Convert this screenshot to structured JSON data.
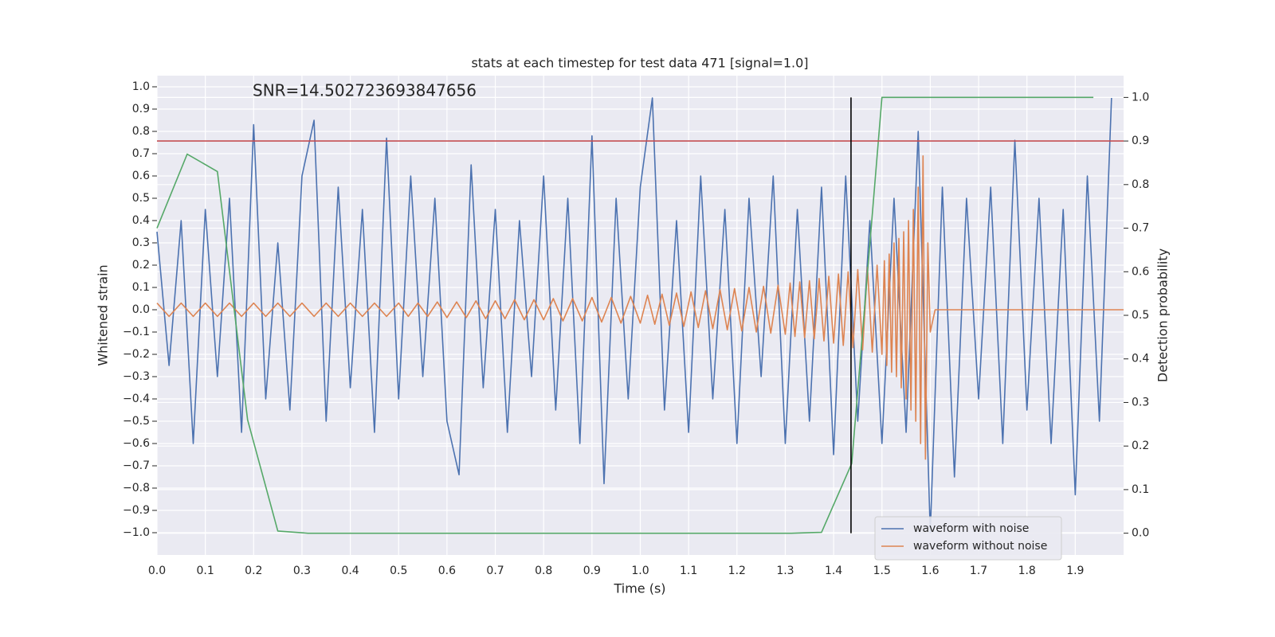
{
  "chart_data": {
    "type": "line",
    "title": "stats at each timestep for test data 471 [signal=1.0]",
    "annotation": "SNR=14.502723693847656",
    "x_label": "Time (s)",
    "y_label": "Whitened strain",
    "y2_label": "Detection probability",
    "xlim": [
      0,
      2.0
    ],
    "ylim": [
      -1.1,
      1.05
    ],
    "y2lim": [
      -0.05,
      1.05
    ],
    "xticks": [
      {
        "value": 0,
        "label": "0.0"
      },
      0.1,
      0.2,
      0.3,
      0.4,
      0.5,
      0.6,
      0.7,
      0.8,
      0.9,
      {
        "value": 1,
        "label": "1.0"
      },
      1.1,
      1.2,
      1.3,
      1.4,
      1.5,
      1.6,
      1.7,
      1.8,
      1.9
    ],
    "yticks": [
      {
        "value": -1,
        "label": "−1.0"
      },
      {
        "value": -0.9,
        "label": "−0.9"
      },
      {
        "value": -0.8,
        "label": "−0.8"
      },
      {
        "value": -0.7,
        "label": "−0.7"
      },
      {
        "value": -0.6,
        "label": "−0.6"
      },
      {
        "value": -0.5,
        "label": "−0.5"
      },
      {
        "value": -0.4,
        "label": "−0.4"
      },
      {
        "value": -0.3,
        "label": "−0.3"
      },
      {
        "value": -0.2,
        "label": "−0.2"
      },
      {
        "value": -0.1,
        "label": "−0.1"
      },
      {
        "value": 0,
        "label": "0.0"
      },
      0.1,
      0.2,
      0.3,
      0.4,
      0.5,
      0.6,
      0.7,
      0.8,
      0.9,
      {
        "value": 1,
        "label": "1.0"
      }
    ],
    "y2ticks": [
      {
        "value": 0,
        "label": "0.0"
      },
      0.1,
      0.2,
      0.3,
      0.4,
      0.5,
      0.6,
      0.7,
      0.8,
      0.9,
      {
        "value": 1,
        "label": "1.0"
      }
    ],
    "grid": true,
    "legend": "lower right",
    "series": [
      {
        "name": "waveform with noise",
        "color": "#4c72b0",
        "axis": "y",
        "x": [
          0,
          0.025,
          0.05,
          0.075,
          0.1,
          0.125,
          0.15,
          0.175,
          0.2,
          0.225,
          0.25,
          0.275,
          0.3,
          0.325,
          0.35,
          0.375,
          0.4,
          0.425,
          0.45,
          0.475,
          0.5,
          0.525,
          0.55,
          0.575,
          0.6,
          0.625,
          0.65,
          0.675,
          0.7,
          0.725,
          0.75,
          0.775,
          0.8,
          0.825,
          0.85,
          0.875,
          0.9,
          0.925,
          0.95,
          0.975,
          1.0,
          1.025,
          1.05,
          1.075,
          1.1,
          1.125,
          1.15,
          1.175,
          1.2,
          1.225,
          1.25,
          1.275,
          1.3,
          1.325,
          1.35,
          1.375,
          1.4,
          1.425,
          1.45,
          1.475,
          1.5,
          1.525,
          1.55,
          1.575,
          1.6,
          1.625,
          1.65,
          1.675,
          1.7,
          1.725,
          1.75,
          1.775,
          1.8,
          1.825,
          1.85,
          1.875,
          1.9,
          1.925,
          1.95,
          1.975
        ],
        "values": [
          0.35,
          -0.25,
          0.4,
          -0.6,
          0.45,
          -0.3,
          0.5,
          -0.55,
          0.83,
          -0.4,
          0.3,
          -0.45,
          0.6,
          0.85,
          -0.5,
          0.55,
          -0.35,
          0.45,
          -0.55,
          0.77,
          -0.4,
          0.6,
          -0.3,
          0.5,
          -0.5,
          -0.74,
          0.65,
          -0.35,
          0.45,
          -0.55,
          0.4,
          -0.3,
          0.6,
          -0.45,
          0.5,
          -0.6,
          0.78,
          -0.78,
          0.5,
          -0.4,
          0.55,
          0.95,
          -0.45,
          0.4,
          -0.55,
          0.6,
          -0.4,
          0.45,
          -0.6,
          0.5,
          -0.3,
          0.6,
          -0.6,
          0.45,
          -0.5,
          0.55,
          -0.65,
          0.6,
          -0.5,
          0.4,
          -0.6,
          0.5,
          -0.55,
          0.8,
          -1.0,
          0.55,
          -0.75,
          0.5,
          -0.4,
          0.55,
          -0.6,
          0.76,
          -0.45,
          0.5,
          -0.6,
          0.45,
          -0.83,
          0.6,
          -0.5,
          0.95
        ]
      },
      {
        "name": "waveform without noise",
        "color": "#dd8452",
        "axis": "y",
        "x": [
          0,
          0.025,
          0.05,
          0.075,
          0.1,
          0.125,
          0.15,
          0.175,
          0.2,
          0.225,
          0.25,
          0.275,
          0.3,
          0.325,
          0.35,
          0.375,
          0.4,
          0.425,
          0.45,
          0.475,
          0.5,
          0.52,
          0.54,
          0.56,
          0.58,
          0.6,
          0.62,
          0.64,
          0.66,
          0.68,
          0.7,
          0.72,
          0.74,
          0.76,
          0.78,
          0.8,
          0.82,
          0.84,
          0.86,
          0.88,
          0.9,
          0.92,
          0.94,
          0.96,
          0.98,
          1.0,
          1.015,
          1.03,
          1.045,
          1.06,
          1.075,
          1.09,
          1.105,
          1.12,
          1.135,
          1.15,
          1.165,
          1.18,
          1.195,
          1.21,
          1.225,
          1.24,
          1.255,
          1.27,
          1.285,
          1.3,
          1.31,
          1.32,
          1.33,
          1.34,
          1.35,
          1.36,
          1.37,
          1.38,
          1.39,
          1.4,
          1.41,
          1.42,
          1.43,
          1.44,
          1.45,
          1.46,
          1.47,
          1.48,
          1.49,
          1.5,
          1.505,
          1.51,
          1.515,
          1.52,
          1.525,
          1.53,
          1.535,
          1.54,
          1.545,
          1.55,
          1.555,
          1.56,
          1.565,
          1.57,
          1.575,
          1.58,
          1.585,
          1.59,
          1.595,
          1.6,
          1.61,
          2.0
        ],
        "values": [
          0.03,
          -0.03,
          0.03,
          -0.03,
          0.03,
          -0.03,
          0.03,
          -0.03,
          0.03,
          -0.03,
          0.03,
          -0.03,
          0.03,
          -0.03,
          0.03,
          -0.03,
          0.03,
          -0.03,
          0.03,
          -0.03,
          0.03,
          -0.03,
          0.03,
          -0.03,
          0.035,
          -0.035,
          0.035,
          -0.035,
          0.04,
          -0.04,
          0.04,
          -0.04,
          0.045,
          -0.045,
          0.045,
          -0.045,
          0.05,
          -0.05,
          0.05,
          -0.05,
          0.055,
          -0.055,
          0.055,
          -0.06,
          0.06,
          -0.06,
          0.065,
          -0.065,
          0.07,
          -0.07,
          0.075,
          -0.075,
          0.08,
          -0.08,
          0.085,
          -0.085,
          0.09,
          -0.09,
          0.095,
          -0.095,
          0.1,
          -0.1,
          0.105,
          -0.105,
          0.11,
          -0.11,
          0.12,
          -0.12,
          0.125,
          -0.125,
          0.13,
          -0.13,
          0.14,
          -0.14,
          0.15,
          -0.15,
          0.16,
          -0.16,
          0.17,
          -0.17,
          0.18,
          -0.18,
          0.19,
          -0.19,
          0.2,
          -0.2,
          0.22,
          -0.25,
          0.25,
          -0.28,
          0.3,
          -0.3,
          0.32,
          -0.35,
          0.35,
          -0.4,
          0.4,
          -0.45,
          0.45,
          -0.5,
          0.55,
          -0.6,
          0.69,
          -0.67,
          0.3,
          -0.1,
          0,
          0
        ]
      },
      {
        "color": "#55a868",
        "axis": "y2",
        "x": [
          0,
          0.0625,
          0.125,
          0.1875,
          0.25,
          0.3125,
          1.3125,
          1.375,
          1.4375,
          1.5,
          1.9375
        ],
        "values": [
          0.7,
          0.87,
          0.83,
          0.26,
          0.005,
          0,
          0,
          0.002,
          0.16,
          1.0,
          1.0
        ]
      },
      {
        "color": "#c44e52",
        "axis": "y2",
        "x": [
          0,
          2.0
        ],
        "values": [
          0.9,
          0.9
        ]
      },
      {
        "color": "#000000",
        "axis": "y2",
        "x": [
          1.436,
          1.436
        ],
        "values": [
          0,
          1.0
        ]
      }
    ]
  }
}
